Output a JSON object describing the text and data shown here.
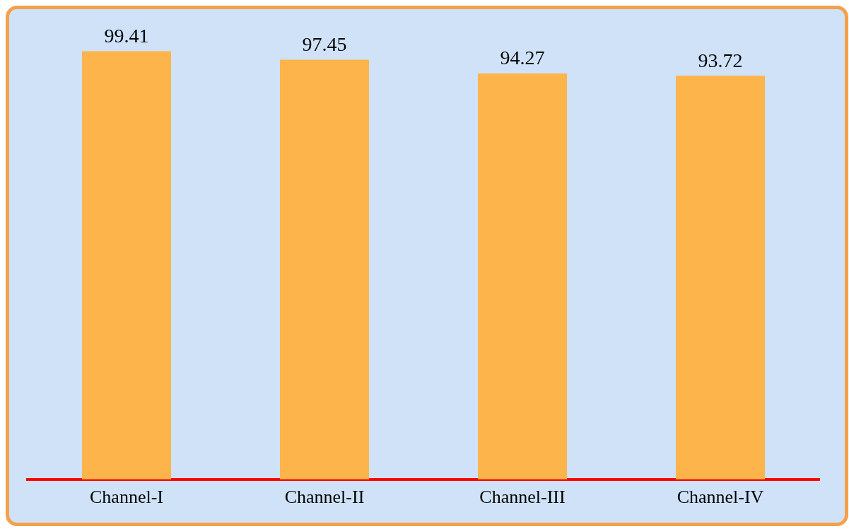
{
  "chart_data": {
    "type": "bar",
    "categories": [
      "Channel-I",
      "Channel-II",
      "Channel-III",
      "Channel-IV"
    ],
    "values": [
      99.41,
      97.45,
      94.27,
      93.72
    ],
    "color": "#fdb44b",
    "data_labels": true,
    "grid": false,
    "legend": false,
    "tick_labels": "x"
  }
}
